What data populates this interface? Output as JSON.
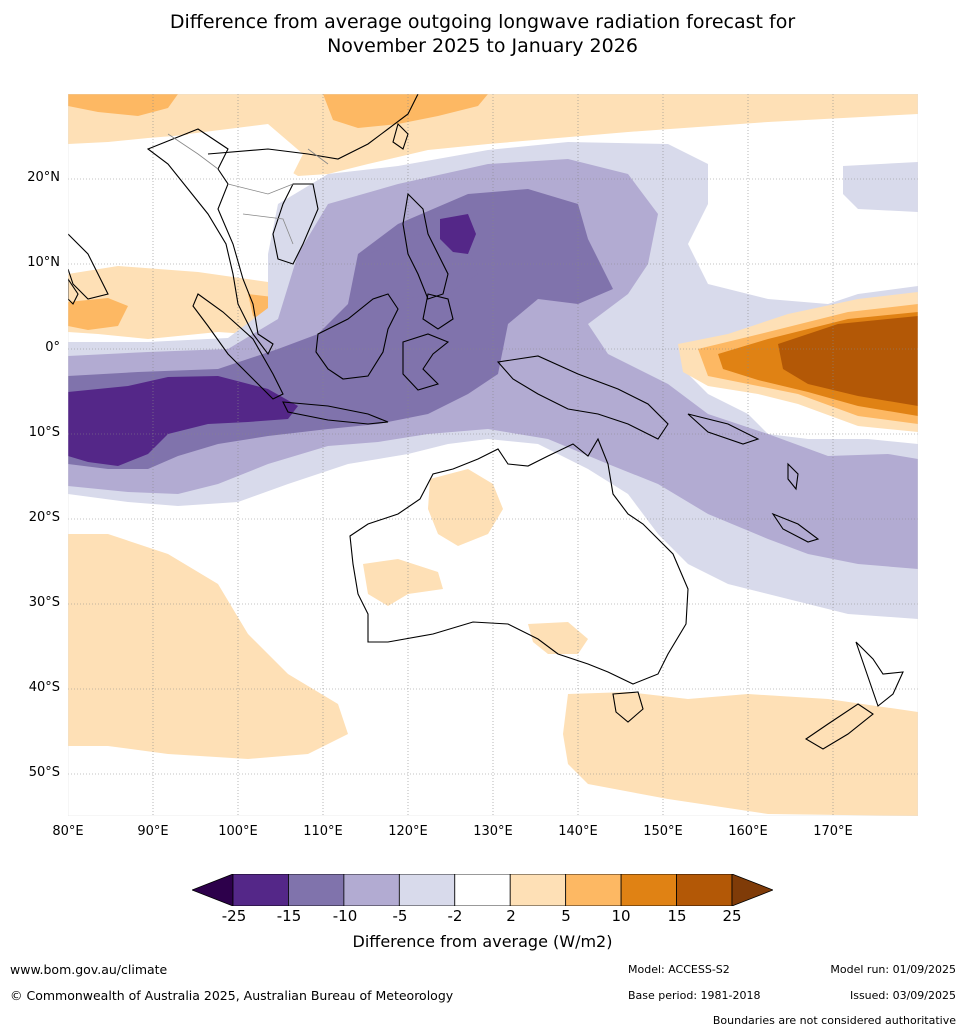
{
  "title": {
    "line1": "Difference from average outgoing longwave radiation forecast for",
    "line2": "November 2025 to January 2026"
  },
  "map": {
    "lat_labels": [
      "20°N",
      "10°N",
      "0°",
      "10°S",
      "20°S",
      "30°S",
      "40°S",
      "50°S"
    ],
    "lon_labels": [
      "80°E",
      "90°E",
      "100°E",
      "110°E",
      "120°E",
      "130°E",
      "140°E",
      "150°E",
      "160°E",
      "170°E"
    ],
    "extent": {
      "lon": [
        80,
        180
      ],
      "lat": [
        -55,
        30
      ]
    }
  },
  "colorbar": {
    "ticks": [
      "-25",
      "-15",
      "-10",
      "-5",
      "-2",
      "2",
      "5",
      "10",
      "15",
      "25"
    ],
    "colors": [
      "#2d004b",
      "#542788",
      "#8073ac",
      "#b2abd2",
      "#d8daeb",
      "#ffffff",
      "#fee0b6",
      "#fdb863",
      "#e08214",
      "#b35806",
      "#7f3b08"
    ],
    "label": "Difference from average (W/m2)"
  },
  "footer": {
    "website": "www.bom.gov.au/climate",
    "copyright": "© Commonwealth of Australia 2025, Australian Bureau of Meteorology",
    "model": "Model: ACCESS-S2",
    "base_period": "Base period: 1981-2018",
    "model_run": "Model run: 01/09/2025",
    "issued": "Issued: 03/09/2025",
    "disclaimer": "Boundaries are not considered authoritative"
  }
}
